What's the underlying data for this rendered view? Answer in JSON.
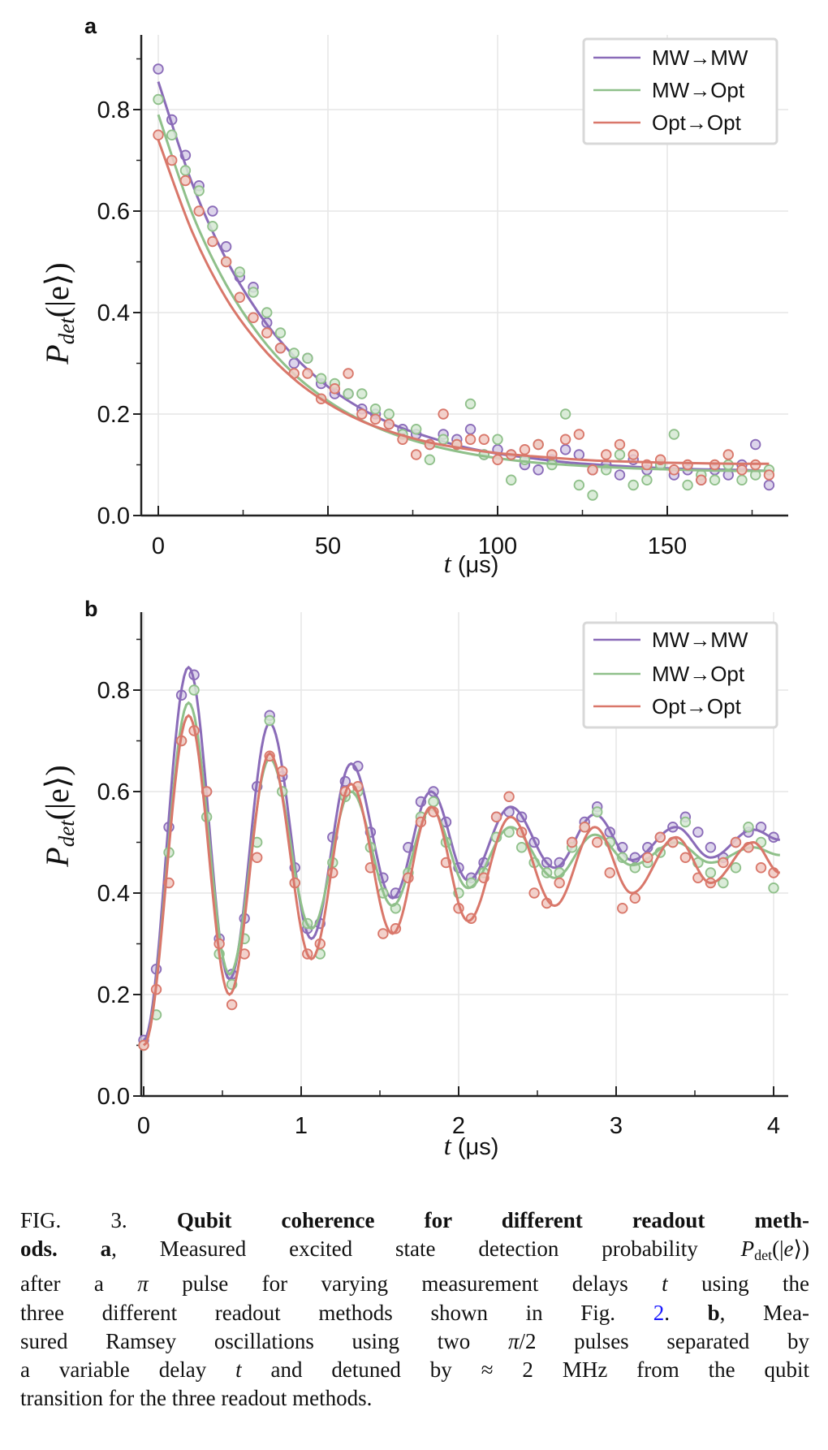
{
  "colors": {
    "MW→MW": "#8a6bb8",
    "MW→Opt": "#8fc08a",
    "Opt→Opt": "#d9776a"
  },
  "chart_data": [
    {
      "panel_label": "a",
      "type": "scatter",
      "xlabel_italic": "t",
      "xlabel_unit": " (μs)",
      "ylabel": "P",
      "ylabel_sub": "det",
      "ylabel_tail": "(|e⟩)",
      "xlim": [
        -4,
        186
      ],
      "ylim": [
        0,
        0.95
      ],
      "xticks": [
        0,
        50,
        100,
        150
      ],
      "xminor": [
        25,
        75,
        125,
        175
      ],
      "yticks": [
        "0.0",
        "0.2",
        "0.4",
        "0.6",
        "0.8"
      ],
      "yminor": [
        0.1,
        0.3,
        0.5,
        0.7,
        0.9
      ],
      "grid": true,
      "legend": "top-right",
      "x_step": 4,
      "series": [
        {
          "name": "MW→MW",
          "points": [
            0.88,
            0.78,
            0.71,
            0.65,
            0.6,
            0.53,
            0.47,
            0.45,
            0.38,
            0.33,
            0.3,
            0.31,
            0.26,
            0.24,
            0.24,
            0.21,
            0.2,
            0.18,
            0.17,
            0.16,
            0.14,
            0.16,
            0.15,
            0.17,
            0.12,
            0.13,
            0.12,
            0.1,
            0.09,
            0.11,
            0.13,
            0.12,
            0.09,
            0.1,
            0.08,
            0.11,
            0.09,
            0.1,
            0.08,
            0.09,
            0.07,
            0.09,
            0.08,
            0.1,
            0.14,
            0.06
          ],
          "fit_t": [
            0,
            10,
            20,
            30,
            40,
            50,
            60,
            70,
            80,
            90,
            100,
            110,
            120,
            130,
            140,
            150,
            160,
            170,
            180
          ],
          "fit": [
            0.855,
            0.654,
            0.505,
            0.395,
            0.314,
            0.254,
            0.21,
            0.177,
            0.154,
            0.135,
            0.122,
            0.113,
            0.105,
            0.1,
            0.096,
            0.093,
            0.091,
            0.09,
            0.088
          ]
        },
        {
          "name": "MW→Opt",
          "points": [
            0.82,
            0.75,
            0.68,
            0.64,
            0.57,
            0.5,
            0.48,
            0.44,
            0.4,
            0.36,
            0.32,
            0.31,
            0.27,
            0.26,
            0.24,
            0.24,
            0.21,
            0.2,
            0.16,
            0.17,
            0.11,
            0.15,
            0.14,
            0.22,
            0.12,
            0.15,
            0.07,
            0.11,
            0.14,
            0.1,
            0.2,
            0.06,
            0.04,
            0.09,
            0.12,
            0.06,
            0.07,
            0.1,
            0.16,
            0.06,
            0.08,
            0.07,
            0.1,
            0.07,
            0.08,
            0.09
          ],
          "fit_t": [
            0,
            10,
            20,
            30,
            40,
            50,
            60,
            70,
            80,
            90,
            100,
            110,
            120,
            130,
            140,
            150,
            160,
            170,
            180
          ],
          "fit": [
            0.79,
            0.595,
            0.455,
            0.353,
            0.279,
            0.226,
            0.187,
            0.159,
            0.139,
            0.124,
            0.113,
            0.105,
            0.1,
            0.096,
            0.093,
            0.091,
            0.089,
            0.088,
            0.088
          ]
        },
        {
          "name": "Opt→Opt",
          "points": [
            0.75,
            0.7,
            0.66,
            0.6,
            0.54,
            0.5,
            0.43,
            0.39,
            0.36,
            0.33,
            0.28,
            0.28,
            0.23,
            0.25,
            0.28,
            0.2,
            0.19,
            0.18,
            0.15,
            0.12,
            0.14,
            0.2,
            0.14,
            0.15,
            0.15,
            0.11,
            0.12,
            0.13,
            0.14,
            0.12,
            0.15,
            0.16,
            0.09,
            0.12,
            0.14,
            0.12,
            0.1,
            0.11,
            0.09,
            0.1,
            0.07,
            0.1,
            0.12,
            0.09,
            0.1,
            0.08
          ],
          "fit_t": [
            0,
            10,
            20,
            30,
            40,
            50,
            60,
            70,
            80,
            90,
            100,
            110,
            120,
            130,
            140,
            150,
            160,
            170,
            180
          ],
          "fit": [
            0.74,
            0.559,
            0.428,
            0.336,
            0.269,
            0.221,
            0.186,
            0.162,
            0.144,
            0.132,
            0.123,
            0.117,
            0.112,
            0.108,
            0.106,
            0.104,
            0.103,
            0.102,
            0.102
          ]
        }
      ]
    },
    {
      "panel_label": "b",
      "type": "scatter",
      "xlabel_italic": "t",
      "xlabel_unit": " (μs)",
      "ylabel": "P",
      "ylabel_sub": "det",
      "ylabel_tail": "(|e⟩)",
      "xlim": [
        -0.01,
        4.08
      ],
      "ylim": [
        0,
        0.95
      ],
      "xticks": [
        0,
        1,
        2,
        3,
        4
      ],
      "xminor": [
        0.5,
        1.5,
        2.5,
        3.5
      ],
      "yticks": [
        "0.0",
        "0.2",
        "0.4",
        "0.6",
        "0.8"
      ],
      "yminor": [
        0.1,
        0.3,
        0.5,
        0.7,
        0.9
      ],
      "grid": true,
      "legend": "top-right",
      "x_step": 0.08,
      "series": [
        {
          "name": "MW→MW",
          "points": [
            0.11,
            0.25,
            0.53,
            0.79,
            0.83,
            0.6,
            0.31,
            0.24,
            0.35,
            0.61,
            0.75,
            0.63,
            0.45,
            0.33,
            0.34,
            0.51,
            0.62,
            0.65,
            0.52,
            0.43,
            0.4,
            0.49,
            0.58,
            0.6,
            0.54,
            0.45,
            0.43,
            0.46,
            0.55,
            0.56,
            0.55,
            0.5,
            0.46,
            0.46,
            0.5,
            0.54,
            0.57,
            0.52,
            0.49,
            0.47,
            0.49,
            0.51,
            0.53,
            0.55,
            0.52,
            0.49,
            0.47,
            0.5,
            0.52,
            0.53,
            0.51
          ],
          "fit_t": [
            0,
            0.285,
            0.545,
            0.8,
            1.065,
            1.317,
            1.58,
            1.825,
            2.06,
            2.33,
            2.61,
            2.865,
            3.1,
            3.38,
            3.6,
            3.87,
            4.04
          ],
          "fit": [
            0.11,
            0.845,
            0.23,
            0.735,
            0.31,
            0.655,
            0.39,
            0.6,
            0.425,
            0.57,
            0.45,
            0.555,
            0.465,
            0.53,
            0.47,
            0.525,
            0.505
          ]
        },
        {
          "name": "MW→Opt",
          "points": [
            0.1,
            0.16,
            0.48,
            0.7,
            0.8,
            0.55,
            0.28,
            0.22,
            0.31,
            0.5,
            0.74,
            0.6,
            0.42,
            0.34,
            0.28,
            0.46,
            0.59,
            0.6,
            0.49,
            0.4,
            0.37,
            0.44,
            0.55,
            0.58,
            0.5,
            0.4,
            0.42,
            0.44,
            0.51,
            0.52,
            0.49,
            0.46,
            0.44,
            0.44,
            0.49,
            0.53,
            0.56,
            0.5,
            0.47,
            0.45,
            0.46,
            0.48,
            0.5,
            0.54,
            0.46,
            0.44,
            0.42,
            0.45,
            0.53,
            0.5,
            0.41
          ],
          "fit_t": [
            0,
            0.285,
            0.545,
            0.8,
            1.065,
            1.317,
            1.58,
            1.825,
            2.06,
            2.33,
            2.61,
            2.865,
            3.1,
            3.38,
            3.6,
            3.87,
            4.04
          ],
          "fit": [
            0.1,
            0.775,
            0.24,
            0.665,
            0.33,
            0.6,
            0.375,
            0.565,
            0.41,
            0.53,
            0.43,
            0.515,
            0.455,
            0.5,
            0.46,
            0.49,
            0.475
          ]
        },
        {
          "name": "Opt→Opt",
          "points": [
            0.1,
            0.21,
            0.42,
            0.7,
            0.72,
            0.6,
            0.3,
            0.18,
            0.28,
            0.47,
            0.67,
            0.64,
            0.42,
            0.28,
            0.3,
            0.44,
            0.6,
            0.61,
            0.45,
            0.32,
            0.33,
            0.43,
            0.54,
            0.56,
            0.46,
            0.37,
            0.35,
            0.43,
            0.55,
            0.59,
            0.52,
            0.4,
            0.38,
            0.42,
            0.5,
            0.53,
            0.5,
            0.44,
            0.37,
            0.39,
            0.47,
            0.51,
            0.5,
            0.47,
            0.43,
            0.42,
            0.46,
            0.5,
            0.49,
            0.45,
            0.44
          ],
          "fit_t": [
            0,
            0.285,
            0.545,
            0.8,
            1.065,
            1.317,
            1.58,
            1.825,
            2.06,
            2.33,
            2.61,
            2.865,
            3.1,
            3.38,
            3.6,
            3.87,
            4.04
          ],
          "fit": [
            0.1,
            0.75,
            0.2,
            0.675,
            0.27,
            0.615,
            0.32,
            0.57,
            0.345,
            0.55,
            0.375,
            0.53,
            0.4,
            0.51,
            0.42,
            0.5,
            0.44
          ]
        }
      ]
    }
  ],
  "caption": [
    [
      {
        "t": "FIG. 3.  "
      },
      {
        "t": "Qubit coherence for different readout meth-",
        "c": "b"
      }
    ],
    [
      {
        "t": "ods. a",
        "c": "b"
      },
      {
        "t": ", Measured excited state detection probability "
      },
      {
        "t": "P",
        "c": "i"
      },
      {
        "t": "det",
        "c": "sub"
      },
      {
        "t": "(|"
      },
      {
        "t": "e",
        "c": "i"
      },
      {
        "t": "⟩)"
      }
    ],
    [
      {
        "t": "after a "
      },
      {
        "t": "π",
        "c": "i"
      },
      {
        "t": " pulse for varying measurement delays "
      },
      {
        "t": "t",
        "c": "i"
      },
      {
        "t": " using the"
      }
    ],
    [
      {
        "t": "three different readout methods shown in Fig. "
      },
      {
        "t": "2",
        "c": "blue"
      },
      {
        "t": ".  "
      },
      {
        "t": "b",
        "c": "b"
      },
      {
        "t": ", Mea-"
      }
    ],
    [
      {
        "t": "sured Ramsey oscillations using two "
      },
      {
        "t": "π",
        "c": "i"
      },
      {
        "t": "/2 pulses separated by"
      }
    ],
    [
      {
        "t": "a variable delay "
      },
      {
        "t": "t",
        "c": "i"
      },
      {
        "t": " and detuned by ≈ 2 MHz from the qubit"
      }
    ],
    [
      {
        "t": "transition for the three readout methods."
      }
    ]
  ]
}
